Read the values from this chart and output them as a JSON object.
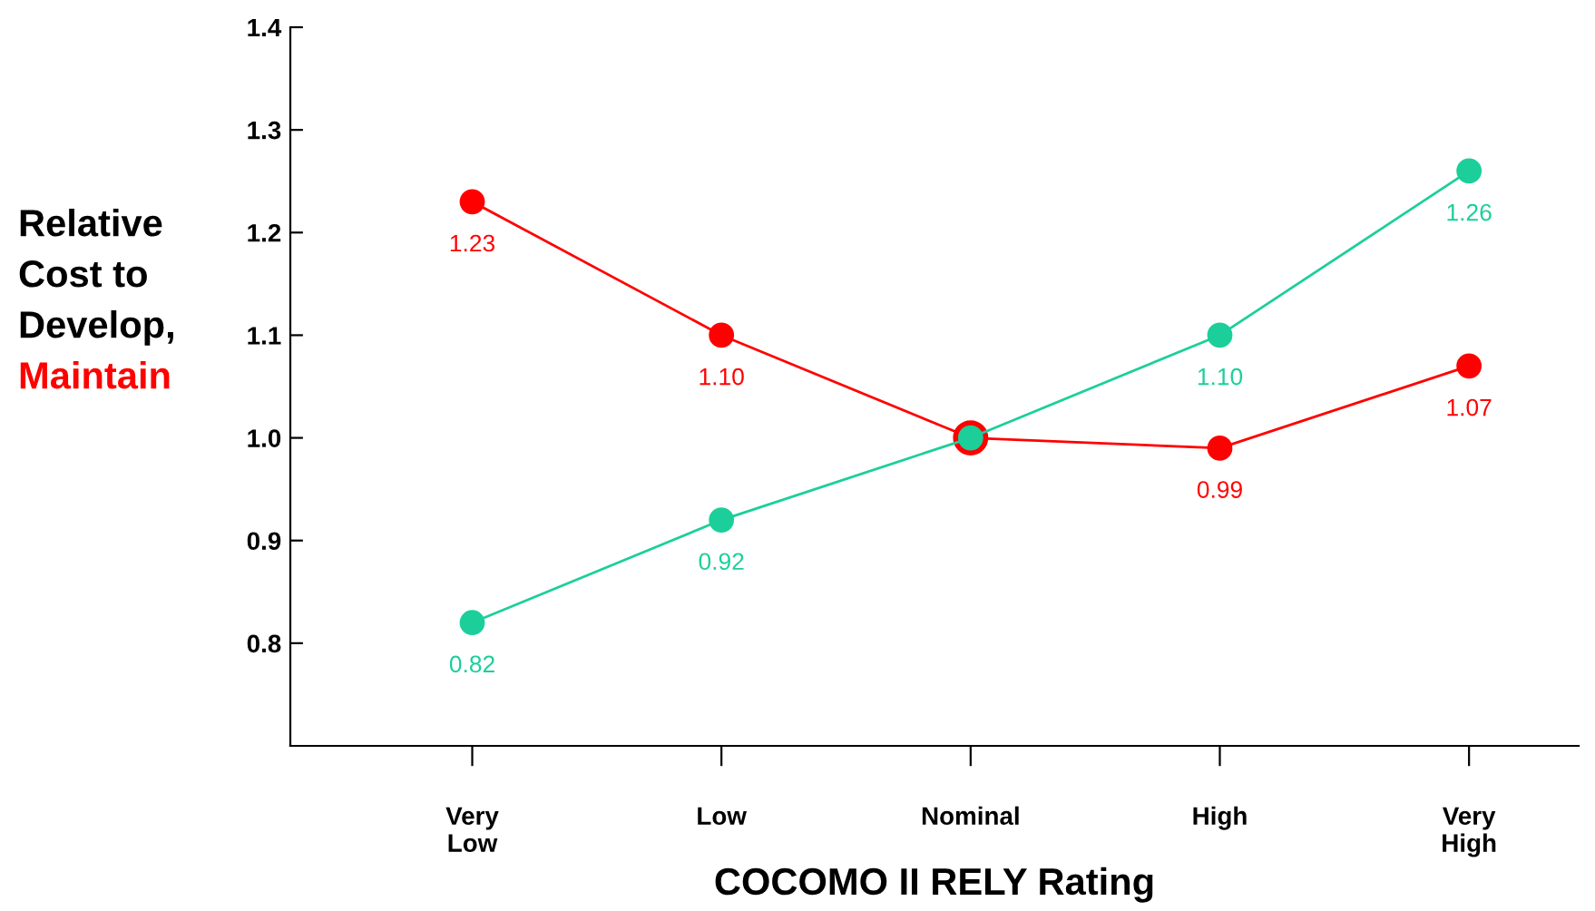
{
  "chart_data": {
    "type": "line",
    "xlabel": "COCOMO II RELY Rating",
    "ylabel": "Relative\nCost to\nDevelop,\nMaintain",
    "categories": [
      "Very Low",
      "Low",
      "Nominal",
      "High",
      "Very High"
    ],
    "series": [
      {
        "color": "#ff0000",
        "values": [
          1.23,
          1.1,
          1.0,
          0.99,
          1.07
        ],
        "value_labels": [
          "1.23",
          "1.10",
          null,
          "0.99",
          "1.07"
        ]
      },
      {
        "color": "#1ccf9a",
        "values": [
          0.82,
          0.92,
          1.0,
          1.1,
          1.26
        ],
        "value_labels": [
          "0.82",
          "0.92",
          null,
          "1.10",
          "1.26"
        ]
      }
    ],
    "ylim": [
      0.7,
      1.4
    ],
    "yticks": [
      0.8,
      0.9,
      {
        "value": 1.0,
        "label": "1.0"
      },
      1.1,
      1.2,
      1.3,
      1.4
    ],
    "marker": "circle",
    "grid": false,
    "legend": false
  }
}
